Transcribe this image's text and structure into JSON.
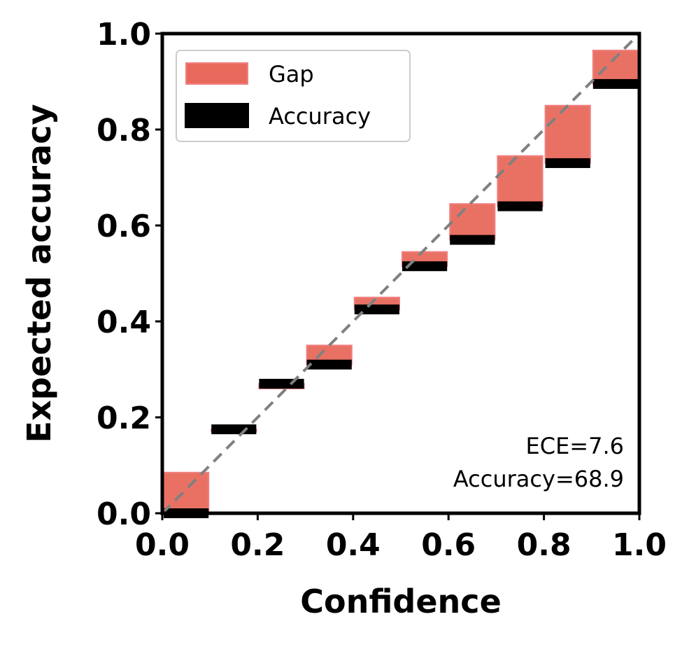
{
  "chart_data": {
    "type": "bar",
    "title": "",
    "xlabel": "Confidence",
    "ylabel": "Expected accuracy",
    "xlim": [
      0,
      1
    ],
    "ylim": [
      0,
      1
    ],
    "xticks": [
      "0.0",
      "0.2",
      "0.4",
      "0.6",
      "0.8",
      "1.0"
    ],
    "yticks": [
      "0.0",
      "0.2",
      "0.4",
      "0.6",
      "0.8",
      "1.0"
    ],
    "bin_width": 0.1,
    "bins": [
      0.0,
      0.1,
      0.2,
      0.3,
      0.4,
      0.5,
      0.6,
      0.7,
      0.8,
      0.9
    ],
    "series": [
      {
        "name": "Accuracy",
        "color": "#000000",
        "values": [
          0.0,
          0.175,
          0.27,
          0.31,
          0.425,
          0.515,
          0.57,
          0.64,
          0.73,
          0.895
        ]
      },
      {
        "name": "Gap",
        "color": "#e8695c",
        "values": [
          0.085,
          0.17,
          0.26,
          0.35,
          0.45,
          0.545,
          0.645,
          0.745,
          0.85,
          0.965
        ]
      }
    ],
    "diagonal": {
      "style": "dashed",
      "color": "#808080"
    },
    "legend": {
      "position": "top-left",
      "entries": [
        "Gap",
        "Accuracy"
      ]
    },
    "grid": false,
    "annotations": [
      "ECE=7.6",
      "Accuracy=68.9"
    ]
  }
}
